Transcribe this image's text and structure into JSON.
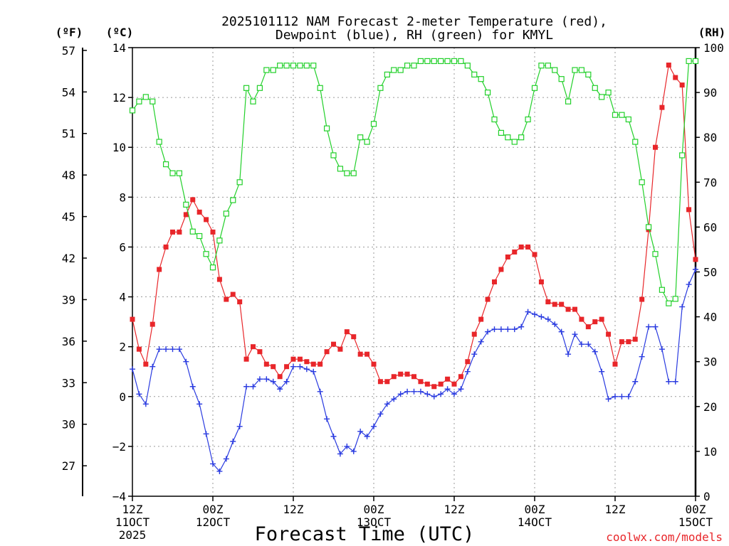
{
  "chart_data": {
    "type": "line",
    "title": [
      "2025101112 NAM Forecast 2-meter Temperature (red),",
      "Dewpoint (blue), RH (green) for KMYL"
    ],
    "xlabel": "Forecast Time (UTC)",
    "credit": "coolwx.com/models",
    "units": {
      "fahrenheit": "(ºF)",
      "celsius": "(ºC)",
      "rh": "(RH)"
    },
    "x_hours_range": [
      0,
      84
    ],
    "x_ticks": [
      {
        "hour": 0,
        "lines": [
          "12Z",
          "11OCT",
          "2025"
        ]
      },
      {
        "hour": 12,
        "lines": [
          "00Z",
          "12OCT"
        ]
      },
      {
        "hour": 24,
        "lines": [
          "12Z"
        ]
      },
      {
        "hour": 36,
        "lines": [
          "00Z",
          "13OCT"
        ]
      },
      {
        "hour": 48,
        "lines": [
          "12Z"
        ]
      },
      {
        "hour": 60,
        "lines": [
          "00Z",
          "14OCT"
        ]
      },
      {
        "hour": 72,
        "lines": [
          "12Z"
        ]
      },
      {
        "hour": 84,
        "lines": [
          "00Z",
          "15OCT"
        ]
      }
    ],
    "y_celsius": {
      "range": [
        -4,
        14
      ],
      "ticks": [
        "-4",
        "-2",
        "0",
        "2",
        "4",
        "6",
        "8",
        "10",
        "12",
        "14"
      ]
    },
    "y_fahrenheit": {
      "ticks": [
        "27",
        "30",
        "33",
        "36",
        "39",
        "42",
        "45",
        "48",
        "51",
        "54",
        "57"
      ]
    },
    "y_rh": {
      "range": [
        0,
        100
      ],
      "ticks": [
        "0",
        "10",
        "20",
        "30",
        "40",
        "50",
        "60",
        "70",
        "80",
        "90",
        "100"
      ]
    },
    "x_hours": [
      0,
      1,
      2,
      3,
      4,
      5,
      6,
      7,
      8,
      9,
      10,
      11,
      12,
      13,
      14,
      15,
      16,
      17,
      18,
      19,
      20,
      21,
      22,
      23,
      24,
      25,
      26,
      27,
      28,
      29,
      30,
      31,
      32,
      33,
      34,
      35,
      36,
      37,
      38,
      39,
      40,
      41,
      42,
      43,
      44,
      45,
      46,
      47,
      48,
      49,
      50,
      51,
      52,
      53,
      54,
      55,
      56,
      57,
      58,
      59,
      60,
      61,
      62,
      63,
      64,
      65,
      66,
      67,
      68,
      69,
      70,
      71,
      72,
      73,
      74,
      75,
      76,
      77,
      78,
      79,
      80,
      81,
      82,
      83,
      84
    ],
    "series": [
      {
        "name": "2-meter Temperature",
        "color": "#e8262a",
        "marker": "filled-square",
        "axis": "celsius",
        "values": [
          3.1,
          1.9,
          1.3,
          2.9,
          5.1,
          6.0,
          6.6,
          6.6,
          7.3,
          7.9,
          7.4,
          7.1,
          6.6,
          4.7,
          3.9,
          4.1,
          3.8,
          1.5,
          2.0,
          1.8,
          1.3,
          1.2,
          0.8,
          1.2,
          1.5,
          1.5,
          1.4,
          1.3,
          1.3,
          1.8,
          2.1,
          1.9,
          2.6,
          2.4,
          1.7,
          1.7,
          1.3,
          0.6,
          0.6,
          0.8,
          0.9,
          0.9,
          0.8,
          0.6,
          0.5,
          0.4,
          0.5,
          0.7,
          0.5,
          0.8,
          1.4,
          2.5,
          3.1,
          3.9,
          4.6,
          5.1,
          5.6,
          5.8,
          6.0,
          6.0,
          5.7,
          4.6,
          3.8,
          3.7,
          3.7,
          3.5,
          3.5,
          3.1,
          2.8,
          3.0,
          3.1,
          2.5,
          1.3,
          2.2,
          2.2,
          2.3,
          3.9,
          6.7,
          10.0,
          11.6,
          13.3,
          12.8,
          12.5,
          7.5,
          5.5
        ]
      },
      {
        "name": "Dewpoint",
        "color": "#2a3be0",
        "marker": "plus",
        "axis": "celsius",
        "values": [
          1.1,
          0.1,
          -0.3,
          1.2,
          1.9,
          1.9,
          1.9,
          1.9,
          1.4,
          0.4,
          -0.3,
          -1.5,
          -2.7,
          -3.0,
          -2.5,
          -1.8,
          -1.2,
          0.4,
          0.4,
          0.7,
          0.7,
          0.6,
          0.3,
          0.6,
          1.2,
          1.2,
          1.1,
          1.0,
          0.2,
          -0.9,
          -1.6,
          -2.3,
          -2.0,
          -2.2,
          -1.4,
          -1.6,
          -1.2,
          -0.7,
          -0.3,
          -0.1,
          0.1,
          0.2,
          0.2,
          0.2,
          0.1,
          0.0,
          0.1,
          0.3,
          0.1,
          0.3,
          1.0,
          1.7,
          2.2,
          2.6,
          2.7,
          2.7,
          2.7,
          2.7,
          2.8,
          3.4,
          3.3,
          3.2,
          3.1,
          2.9,
          2.6,
          1.7,
          2.5,
          2.1,
          2.1,
          1.8,
          1.0,
          -0.1,
          0.0,
          0.0,
          0.0,
          0.6,
          1.6,
          2.8,
          2.8,
          1.9,
          0.6,
          0.6,
          3.6,
          4.5,
          5.1
        ]
      },
      {
        "name": "RH",
        "color": "#22d02a",
        "marker": "open-square",
        "axis": "rh",
        "values": [
          86,
          88,
          89,
          88,
          79,
          74,
          72,
          72,
          65,
          59,
          58,
          54,
          51,
          57,
          63,
          66,
          70,
          91,
          88,
          91,
          95,
          95,
          96,
          96,
          96,
          96,
          96,
          96,
          91,
          82,
          76,
          73,
          72,
          72,
          80,
          79,
          83,
          91,
          94,
          95,
          95,
          96,
          96,
          97,
          97,
          97,
          97,
          97,
          97,
          97,
          96,
          94,
          93,
          90,
          84,
          81,
          80,
          79,
          80,
          84,
          91,
          96,
          96,
          95,
          93,
          88,
          95,
          95,
          94,
          91,
          89,
          90,
          85,
          85,
          84,
          79,
          70,
          60,
          54,
          46,
          43,
          44,
          76,
          97,
          97
        ]
      }
    ]
  }
}
